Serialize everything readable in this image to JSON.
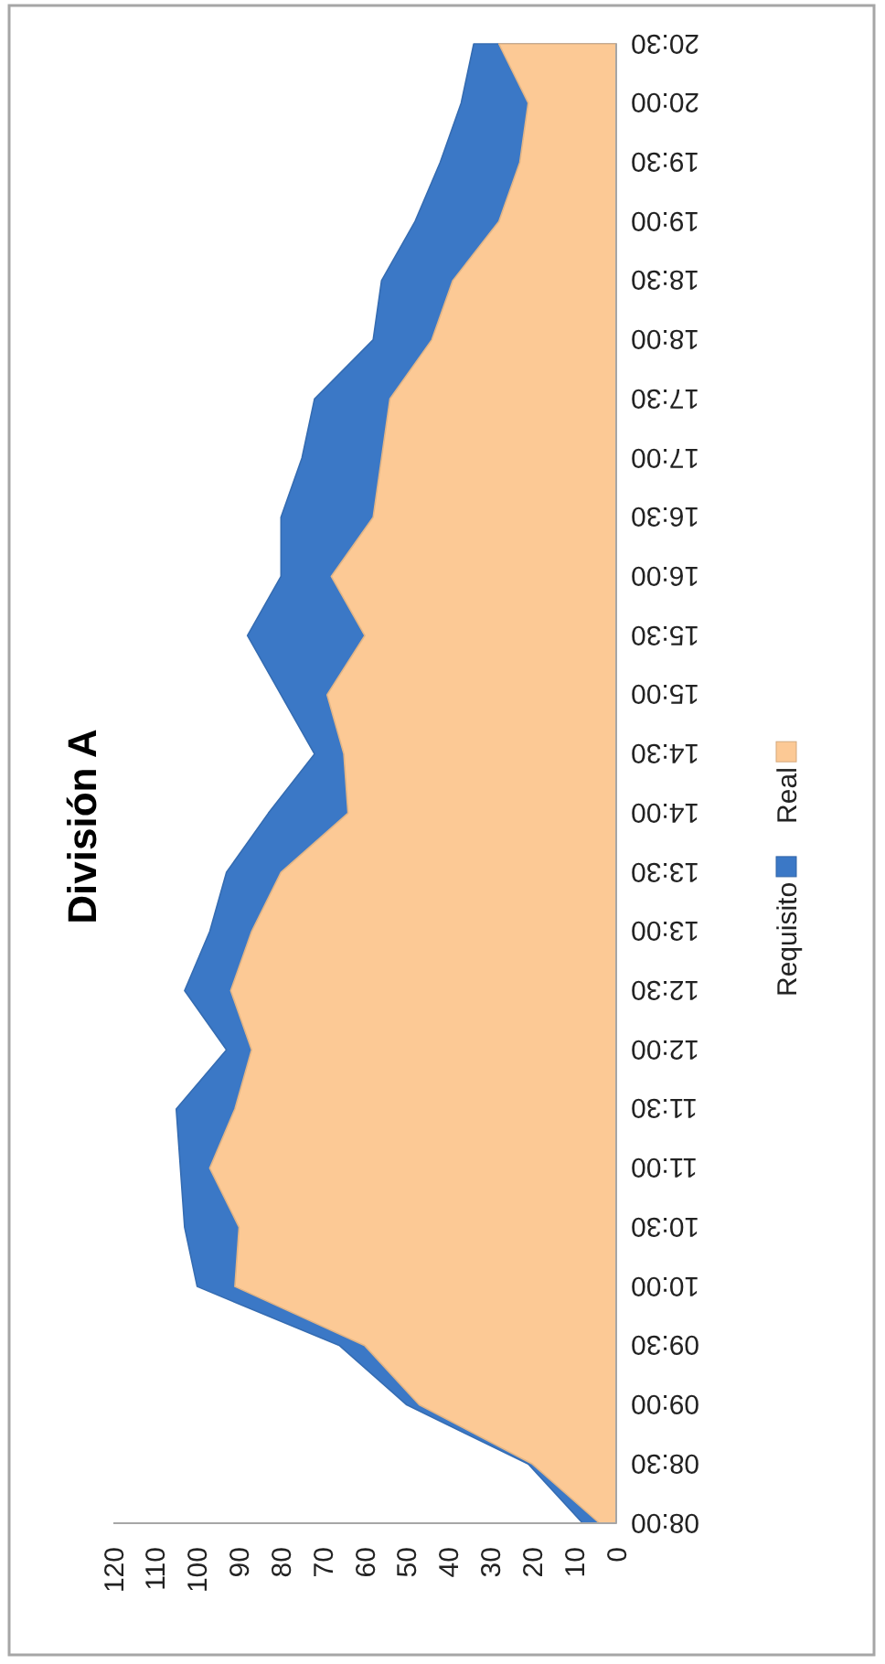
{
  "chart_data": {
    "type": "area",
    "orientation": "horizontal",
    "title": "División A",
    "categories": [
      "20:30",
      "20:00",
      "19:30",
      "19:00",
      "18:30",
      "18:00",
      "17:30",
      "17:00",
      "16:30",
      "16:00",
      "15:30",
      "15:00",
      "14:30",
      "14:00",
      "13:30",
      "13:00",
      "12:30",
      "12:00",
      "11:30",
      "11:00",
      "10:30",
      "10:00",
      "09:30",
      "09:00",
      "08:30",
      "08:00"
    ],
    "series": [
      {
        "name": "Requisito",
        "color": "#3b78c6",
        "values": [
          34,
          37,
          42,
          48,
          56,
          58,
          72,
          75,
          80,
          80,
          88,
          80,
          72,
          83,
          93,
          97,
          103,
          93,
          105,
          104,
          103,
          100,
          66,
          50,
          21,
          8
        ]
      },
      {
        "name": "Real",
        "color": "#fcc995",
        "values": [
          28,
          21,
          23,
          28,
          39,
          44,
          54,
          56,
          58,
          68,
          60,
          69,
          65,
          64,
          80,
          87,
          92,
          87,
          91,
          97,
          90,
          91,
          60,
          47,
          20,
          4
        ]
      }
    ],
    "xlim": [
      120,
      0
    ],
    "xticks": [
      120,
      110,
      100,
      90,
      80,
      70,
      60,
      50,
      40,
      30,
      20,
      10,
      0
    ],
    "grid": false,
    "legend": "right"
  }
}
